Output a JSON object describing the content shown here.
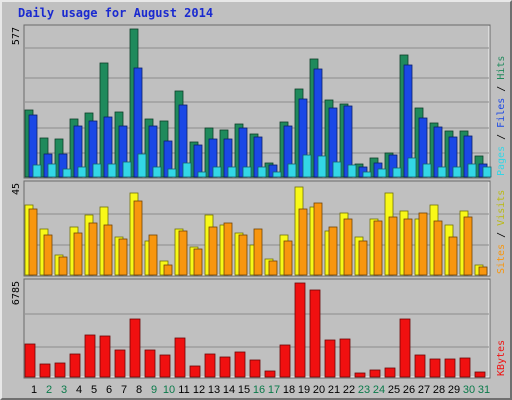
{
  "title": "Daily usage for August 2014",
  "chart_data": [
    {
      "type": "bar",
      "panel": "hits",
      "max_label": "577",
      "ylim": [
        0,
        577
      ],
      "categories": [
        "1",
        "2",
        "3",
        "4",
        "5",
        "6",
        "7",
        "8",
        "9",
        "10",
        "11",
        "12",
        "13",
        "14",
        "15",
        "16",
        "17",
        "18",
        "19",
        "20",
        "21",
        "22",
        "23",
        "24",
        "25",
        "26",
        "27",
        "28",
        "29",
        "30",
        "31"
      ],
      "series": [
        {
          "name": "Hits",
          "color": "#1f8a5c",
          "values": [
            260,
            152,
            148,
            228,
            250,
            445,
            255,
            577,
            228,
            220,
            335,
            138,
            190,
            182,
            206,
            166,
            55,
            215,
            345,
            460,
            300,
            285,
            50,
            75,
            93,
            476,
            270,
            210,
            180,
            180,
            80
          ]
        },
        {
          "name": "Files",
          "color": "#1a48e6",
          "values": [
            240,
            90,
            90,
            200,
            220,
            235,
            200,
            425,
            200,
            140,
            280,
            125,
            150,
            150,
            190,
            155,
            45,
            200,
            305,
            420,
            270,
            275,
            40,
            55,
            85,
            436,
            230,
            195,
            155,
            160,
            50
          ]
        },
        {
          "name": "Pages",
          "color": "#33d6e6",
          "values": [
            48,
            50,
            30,
            40,
            50,
            50,
            60,
            90,
            40,
            30,
            55,
            20,
            40,
            40,
            40,
            40,
            20,
            50,
            85,
            80,
            60,
            45,
            20,
            30,
            35,
            75,
            50,
            40,
            40,
            50,
            40
          ]
        }
      ],
      "legend": [
        "Pages",
        "Files",
        "Hits"
      ]
    },
    {
      "type": "bar",
      "panel": "visits",
      "max_label": "45",
      "ylim": [
        0,
        45
      ],
      "categories": [
        "1",
        "2",
        "3",
        "4",
        "5",
        "6",
        "7",
        "8",
        "9",
        "10",
        "11",
        "12",
        "13",
        "14",
        "15",
        "16",
        "17",
        "18",
        "19",
        "20",
        "21",
        "22",
        "23",
        "24",
        "25",
        "26",
        "27",
        "28",
        "29",
        "30",
        "31"
      ],
      "series": [
        {
          "name": "Visits",
          "color": "#f8f818",
          "values": [
            35,
            23,
            10,
            24,
            30,
            34,
            19,
            41,
            17,
            7,
            23,
            14,
            30,
            25,
            21,
            15,
            8,
            20,
            44,
            34,
            22,
            31,
            19,
            28,
            41,
            32,
            28,
            35,
            25,
            32,
            5
          ]
        },
        {
          "name": "Sites",
          "color": "#f8960e",
          "values": [
            33,
            20,
            9,
            21,
            26,
            25,
            18,
            37,
            20,
            5,
            22,
            13,
            24,
            26,
            20,
            23,
            7,
            17,
            33,
            36,
            24,
            28,
            17,
            27,
            29,
            28,
            31,
            27,
            19,
            29,
            4
          ]
        }
      ],
      "legend": [
        "Sites",
        "Visits"
      ]
    },
    {
      "type": "bar",
      "panel": "kbytes",
      "max_label": "6785",
      "ylim": [
        0,
        6785
      ],
      "categories": [
        "1",
        "2",
        "3",
        "4",
        "5",
        "6",
        "7",
        "8",
        "9",
        "10",
        "11",
        "12",
        "13",
        "14",
        "15",
        "16",
        "17",
        "18",
        "19",
        "20",
        "21",
        "22",
        "23",
        "24",
        "25",
        "26",
        "27",
        "28",
        "29",
        "30",
        "31"
      ],
      "series": [
        {
          "name": "KBytes",
          "color": "#f01010",
          "values": [
            2410,
            942,
            998,
            1663,
            3040,
            2950,
            1950,
            4210,
            1950,
            1600,
            2840,
            810,
            1670,
            1450,
            1770,
            1250,
            430,
            2330,
            6785,
            6290,
            2690,
            2730,
            290,
            480,
            620,
            4160,
            1580,
            1320,
            1300,
            1350,
            380
          ]
        }
      ],
      "legend": [
        "KBytes"
      ]
    }
  ]
}
